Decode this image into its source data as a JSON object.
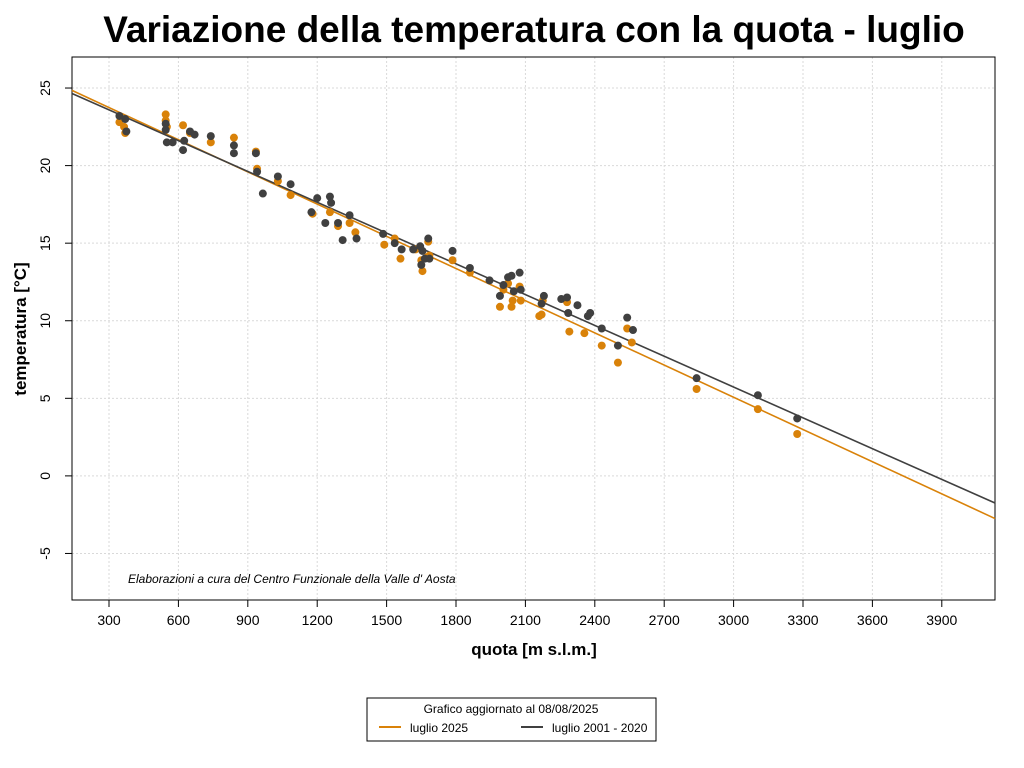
{
  "chart_data": {
    "type": "scatter",
    "title": "Variazione della temperatura con la quota -  luglio",
    "xlabel": "quota [m s.l.m.]",
    "ylabel": "temperatura [°C]",
    "xlim": [
      140,
      4130
    ],
    "ylim": [
      -8,
      27
    ],
    "x_ticks": [
      300,
      600,
      900,
      1200,
      1500,
      1800,
      2100,
      2400,
      2700,
      3000,
      3300,
      3600,
      3900
    ],
    "y_ticks": [
      -5,
      0,
      5,
      10,
      15,
      20,
      25
    ],
    "grid": true,
    "credit": "Elaborazioni a cura del Centro Funzionale della Valle d' Aosta",
    "legend": {
      "title": "Grafico aggiornato al 08/08/2025",
      "placement": "bottom-center",
      "items": [
        "luglio 2025",
        "luglio 2001 - 2020"
      ]
    },
    "series": [
      {
        "name": "luglio 2025",
        "color": "#D98209",
        "fit_line": {
          "x": [
            140,
            4130
          ],
          "y": [
            24.85,
            -2.75
          ]
        },
        "points": [
          [
            345,
            22.8
          ],
          [
            365,
            22.5
          ],
          [
            370,
            22.1
          ],
          [
            545,
            23.3
          ],
          [
            545,
            22.9
          ],
          [
            550,
            22.5
          ],
          [
            620,
            22.6
          ],
          [
            650,
            22.1
          ],
          [
            740,
            21.5
          ],
          [
            840,
            21.8
          ],
          [
            935,
            20.9
          ],
          [
            940,
            19.8
          ],
          [
            1030,
            19.0
          ],
          [
            1085,
            18.1
          ],
          [
            1180,
            16.9
          ],
          [
            1255,
            17.0
          ],
          [
            1290,
            16.1
          ],
          [
            1340,
            16.3
          ],
          [
            1365,
            15.7
          ],
          [
            1490,
            14.9
          ],
          [
            1535,
            15.3
          ],
          [
            1560,
            14.0
          ],
          [
            1625,
            14.6
          ],
          [
            1650,
            13.9
          ],
          [
            1655,
            13.2
          ],
          [
            1680,
            15.1
          ],
          [
            1685,
            14.2
          ],
          [
            1785,
            13.9
          ],
          [
            1860,
            13.1
          ],
          [
            1990,
            10.9
          ],
          [
            2005,
            12.0
          ],
          [
            2025,
            12.4
          ],
          [
            2040,
            10.9
          ],
          [
            2045,
            11.3
          ],
          [
            2075,
            12.2
          ],
          [
            2080,
            11.3
          ],
          [
            2160,
            10.3
          ],
          [
            2170,
            10.4
          ],
          [
            2175,
            11.3
          ],
          [
            2280,
            11.2
          ],
          [
            2290,
            9.3
          ],
          [
            2355,
            9.2
          ],
          [
            2430,
            8.4
          ],
          [
            2500,
            7.3
          ],
          [
            2540,
            9.5
          ],
          [
            2560,
            8.6
          ],
          [
            2840,
            5.6
          ],
          [
            3105,
            4.3
          ],
          [
            3275,
            2.7
          ]
        ]
      },
      {
        "name": "luglio 2001 - 2020",
        "color": "#404040",
        "fit_line": {
          "x": [
            140,
            4130
          ],
          "y": [
            24.65,
            -1.75
          ]
        },
        "points": [
          [
            345,
            23.2
          ],
          [
            370,
            23.0
          ],
          [
            375,
            22.2
          ],
          [
            545,
            22.7
          ],
          [
            545,
            22.3
          ],
          [
            550,
            21.5
          ],
          [
            575,
            21.5
          ],
          [
            620,
            21.0
          ],
          [
            625,
            21.6
          ],
          [
            650,
            22.2
          ],
          [
            670,
            22.0
          ],
          [
            740,
            21.9
          ],
          [
            840,
            21.3
          ],
          [
            840,
            20.8
          ],
          [
            935,
            20.8
          ],
          [
            940,
            19.6
          ],
          [
            965,
            18.2
          ],
          [
            1030,
            19.3
          ],
          [
            1085,
            18.8
          ],
          [
            1175,
            17.0
          ],
          [
            1200,
            17.9
          ],
          [
            1235,
            16.3
          ],
          [
            1255,
            18.0
          ],
          [
            1260,
            17.6
          ],
          [
            1290,
            16.3
          ],
          [
            1310,
            15.2
          ],
          [
            1340,
            16.8
          ],
          [
            1370,
            15.3
          ],
          [
            1485,
            15.6
          ],
          [
            1535,
            15.0
          ],
          [
            1565,
            14.6
          ],
          [
            1615,
            14.6
          ],
          [
            1645,
            14.8
          ],
          [
            1650,
            13.6
          ],
          [
            1655,
            14.5
          ],
          [
            1665,
            14.0
          ],
          [
            1680,
            15.3
          ],
          [
            1685,
            14.0
          ],
          [
            1785,
            14.5
          ],
          [
            1860,
            13.4
          ],
          [
            1945,
            12.6
          ],
          [
            1990,
            11.6
          ],
          [
            2005,
            12.3
          ],
          [
            2025,
            12.8
          ],
          [
            2040,
            12.9
          ],
          [
            2050,
            11.9
          ],
          [
            2075,
            13.1
          ],
          [
            2080,
            12.0
          ],
          [
            2170,
            11.1
          ],
          [
            2180,
            11.6
          ],
          [
            2255,
            11.4
          ],
          [
            2280,
            11.5
          ],
          [
            2285,
            10.5
          ],
          [
            2325,
            11.0
          ],
          [
            2370,
            10.3
          ],
          [
            2380,
            10.5
          ],
          [
            2430,
            9.5
          ],
          [
            2500,
            8.4
          ],
          [
            2540,
            10.2
          ],
          [
            2565,
            9.4
          ],
          [
            2840,
            6.3
          ],
          [
            3105,
            5.2
          ],
          [
            3275,
            3.7
          ]
        ]
      }
    ]
  }
}
